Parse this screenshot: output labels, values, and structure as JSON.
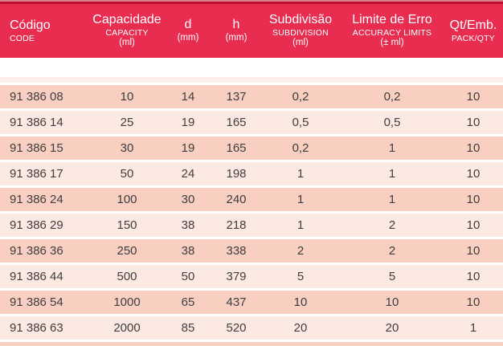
{
  "colors": {
    "header_red": "#e92d50",
    "header_top_dark": "#c30d31",
    "header_top_light": "#d5808e",
    "row_dark": "#f8cfc0",
    "row_light": "#fce9e1",
    "text": "#3f3e40",
    "header_text": "#ffffff"
  },
  "table": {
    "columns": [
      {
        "id": "codigo",
        "label": "Código",
        "sublabel": "CODE",
        "unit": ""
      },
      {
        "id": "capacidade",
        "label": "Capacidade",
        "sublabel": "CAPACITY",
        "unit": "(ml)"
      },
      {
        "id": "d",
        "label": "d",
        "sublabel": "",
        "unit": "(mm)"
      },
      {
        "id": "h",
        "label": "h",
        "sublabel": "",
        "unit": "(mm)"
      },
      {
        "id": "subdivisao",
        "label": "Subdivisão",
        "sublabel": "SUBDIVISION",
        "unit": "(ml)"
      },
      {
        "id": "limite_de_erro",
        "label": "Limite de Erro",
        "sublabel": "ACCURACY LIMITS",
        "unit": "(± ml)"
      },
      {
        "id": "qt_emb",
        "label": "Qt/Emb.",
        "sublabel": "PACK/QTY",
        "unit": ""
      }
    ],
    "rows": [
      [
        "91 386 08",
        "10",
        "14",
        "137",
        "0,2",
        "0,2",
        "10"
      ],
      [
        "91 386 14",
        "25",
        "19",
        "165",
        "0,5",
        "0,5",
        "10"
      ],
      [
        "91 386 15",
        "30",
        "19",
        "165",
        "0,2",
        "1",
        "10"
      ],
      [
        "91 386 17",
        "50",
        "24",
        "198",
        "1",
        "1",
        "10"
      ],
      [
        "91 386 24",
        "100",
        "30",
        "240",
        "1",
        "1",
        "10"
      ],
      [
        "91 386 29",
        "150",
        "38",
        "218",
        "1",
        "2",
        "10"
      ],
      [
        "91 386 36",
        "250",
        "38",
        "338",
        "2",
        "2",
        "10"
      ],
      [
        "91 386 44",
        "500",
        "50",
        "379",
        "5",
        "5",
        "10"
      ],
      [
        "91 386 54",
        "1000",
        "65",
        "437",
        "10",
        "10",
        "10"
      ],
      [
        "91 386 63",
        "2000",
        "85",
        "520",
        "20",
        "20",
        "1"
      ]
    ]
  }
}
